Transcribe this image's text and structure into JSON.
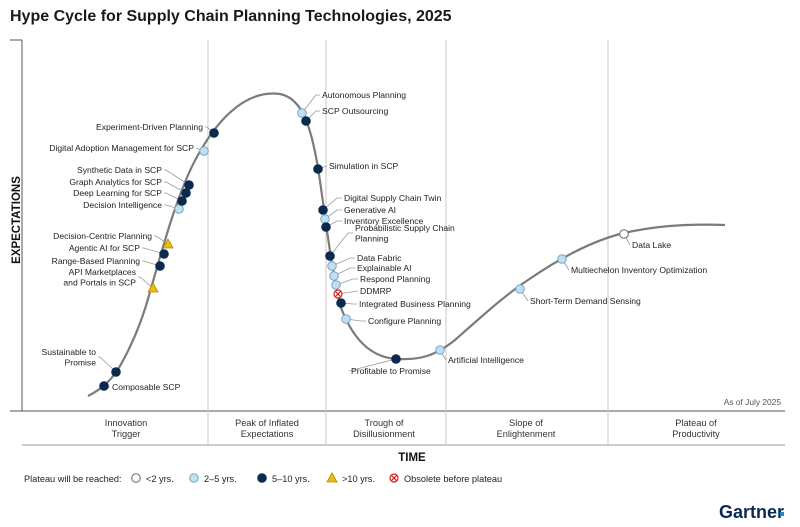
{
  "chart_data": {
    "type": "scatter",
    "title": "Hype Cycle for Supply Chain Planning Technologies, 2025",
    "xlabel": "TIME",
    "ylabel": "EXPECTATIONS",
    "as_of": "As of July 2025",
    "phases": [
      {
        "lines": [
          "Innovation",
          "Trigger"
        ]
      },
      {
        "lines": [
          "Peak of Inflated",
          "Expectations"
        ]
      },
      {
        "lines": [
          "Trough of",
          "Disillusionment"
        ]
      },
      {
        "lines": [
          "Slope of",
          "Enlightenment"
        ]
      },
      {
        "lines": [
          "Plateau of",
          "Productivity"
        ]
      }
    ],
    "legend": {
      "title": "Plateau will be reached:",
      "items": [
        {
          "key": "lt2",
          "label": "<2 yrs."
        },
        {
          "key": "2to5",
          "label": "2–5 yrs."
        },
        {
          "key": "5to10",
          "label": "5–10 yrs."
        },
        {
          "key": "gt10",
          "label": ">10 yrs."
        },
        {
          "key": "obsolete",
          "label": "Obsolete before plateau"
        }
      ]
    },
    "markers": {
      "lt2": {
        "fill": "#ffffff",
        "stroke": "#6a6a6a"
      },
      "2to5": {
        "fill": "#bfe0f2",
        "stroke": "#7aa6c2"
      },
      "5to10": {
        "fill": "#0b2a4f",
        "stroke": "#0b2a4f"
      },
      "gt10": {
        "fill": "#f2b817",
        "stroke": "#b88700"
      },
      "obsolete": {
        "fill": "#ffffff",
        "stroke": "#d42020"
      }
    },
    "points": [
      {
        "label": "Composable SCP",
        "cat": "5to10"
      },
      {
        "label": "Sustainable to Promise",
        "cat": "5to10"
      },
      {
        "label": "API Marketplaces and Portals in SCP",
        "cat": "gt10"
      },
      {
        "label": "Range-Based Planning",
        "cat": "5to10"
      },
      {
        "label": "Agentic AI for SCP",
        "cat": "5to10"
      },
      {
        "label": "Decision-Centric Planning",
        "cat": "gt10"
      },
      {
        "label": "Decision Intelligence",
        "cat": "2to5"
      },
      {
        "label": "Deep Learning for SCP",
        "cat": "5to10"
      },
      {
        "label": "Graph Analytics for SCP",
        "cat": "5to10"
      },
      {
        "label": "Synthetic Data in SCP",
        "cat": "5to10"
      },
      {
        "label": "Digital Adoption Management for SCP",
        "cat": "2to5"
      },
      {
        "label": "Experiment-Driven Planning",
        "cat": "5to10"
      },
      {
        "label": "Autonomous Planning",
        "cat": "2to5"
      },
      {
        "label": "SCP Outsourcing",
        "cat": "5to10"
      },
      {
        "label": "Simulation in SCP",
        "cat": "5to10"
      },
      {
        "label": "Digital Supply Chain Twin",
        "cat": "5to10"
      },
      {
        "label": "Generative AI",
        "cat": "2to5"
      },
      {
        "label": "Inventory Excellence",
        "cat": "5to10"
      },
      {
        "label": "Probabilistic Supply Chain Planning",
        "cat": "5to10"
      },
      {
        "label": "Data Fabric",
        "cat": "2to5"
      },
      {
        "label": "Explainable AI",
        "cat": "2to5"
      },
      {
        "label": "Respond Planning",
        "cat": "2to5"
      },
      {
        "label": "DDMRP",
        "cat": "obsolete"
      },
      {
        "label": "Integrated Business Planning",
        "cat": "5to10"
      },
      {
        "label": "Configure Planning",
        "cat": "2to5"
      },
      {
        "label": "Profitable to Promise",
        "cat": "5to10"
      },
      {
        "label": "Artificial Intelligence",
        "cat": "2to5"
      },
      {
        "label": "Short-Term Demand Sensing",
        "cat": "2to5"
      },
      {
        "label": "Multiechelon Inventory Optimization",
        "cat": "2to5"
      },
      {
        "label": "Data Lake",
        "cat": "lt2"
      }
    ]
  },
  "brand": "Gartner"
}
